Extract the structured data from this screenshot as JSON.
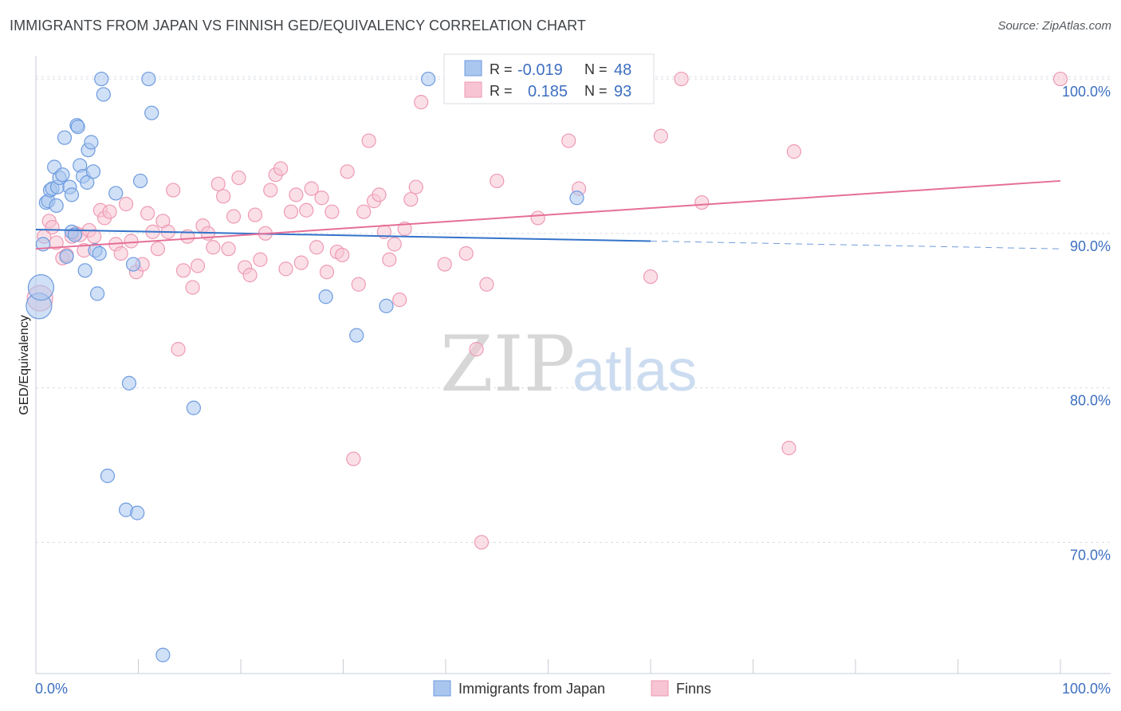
{
  "title": "IMMIGRANTS FROM JAPAN VS FINNISH GED/EQUIVALENCY CORRELATION CHART",
  "source": "Source: ZipAtlas.com",
  "watermark": {
    "zip": "ZIP",
    "atlas": "atlas"
  },
  "colors": {
    "japan_fill": "#a9c6ee",
    "japan_stroke": "#6d9be0",
    "japan_line": "#3373c9",
    "finns_fill": "#f7c4d3",
    "finns_stroke": "#ee9ab3",
    "finns_line": "#e56f97",
    "grid": "#d8dde3",
    "tick_text": "#3d6fc0"
  },
  "legend_top": {
    "rows": [
      {
        "r_label": "R =",
        "r_value": "-0.019",
        "n_label": "N =",
        "n_value": "48"
      },
      {
        "r_label": "R =",
        "r_value": "0.185",
        "n_label": "N =",
        "n_value": "93"
      }
    ]
  },
  "legend_bottom": [
    "Immigrants from Japan",
    "Finns"
  ],
  "chart_data": {
    "type": "scatter",
    "title": "IMMIGRANTS FROM JAPAN VS FINNISH GED/EQUIVALENCY CORRELATION CHART",
    "xlabel": "",
    "ylabel": "GED/Equivalency",
    "xlim": [
      0,
      100
    ],
    "ylim": [
      61.5,
      101.5
    ],
    "x_tick_labels": [
      "0.0%",
      "100.0%"
    ],
    "y_ticks": [
      70,
      80,
      90,
      100
    ],
    "y_tick_labels": [
      "70.0%",
      "80.0%",
      "90.0%",
      "100.0%"
    ],
    "grid": true,
    "legend_placement": "top-center and bottom-center",
    "series": [
      {
        "name": "Immigrants from Japan",
        "R": -0.019,
        "N": 48,
        "trend": {
          "x0": 0,
          "y0": 90.25,
          "x1": 60,
          "y1": 89.5,
          "dashed_to_x": 100,
          "dashed_to_y": 89.0
        },
        "points": [
          [
            0.3,
            85.3
          ],
          [
            0.5,
            86.5
          ],
          [
            0.7,
            89.3
          ],
          [
            1.0,
            92.0
          ],
          [
            1.2,
            92.1
          ],
          [
            1.4,
            92.8
          ],
          [
            1.6,
            92.9
          ],
          [
            1.8,
            94.3
          ],
          [
            2.0,
            91.8
          ],
          [
            2.1,
            93.0
          ],
          [
            2.3,
            93.6
          ],
          [
            2.6,
            93.8
          ],
          [
            2.8,
            96.2
          ],
          [
            3.0,
            88.5
          ],
          [
            3.3,
            93.0
          ],
          [
            3.5,
            92.5
          ],
          [
            3.5,
            90.1
          ],
          [
            3.8,
            89.9
          ],
          [
            4.0,
            97.0
          ],
          [
            4.1,
            96.9
          ],
          [
            4.3,
            94.4
          ],
          [
            4.6,
            93.7
          ],
          [
            4.8,
            87.6
          ],
          [
            5.0,
            93.3
          ],
          [
            5.1,
            95.4
          ],
          [
            5.4,
            95.9
          ],
          [
            5.6,
            94.0
          ],
          [
            5.8,
            88.9
          ],
          [
            6.0,
            86.1
          ],
          [
            6.2,
            88.7
          ],
          [
            6.4,
            100.0
          ],
          [
            6.6,
            99.0
          ],
          [
            7.0,
            74.3
          ],
          [
            7.8,
            92.6
          ],
          [
            8.8,
            72.1
          ],
          [
            9.1,
            80.3
          ],
          [
            9.5,
            88.0
          ],
          [
            9.9,
            71.9
          ],
          [
            10.2,
            93.4
          ],
          [
            11.0,
            100.0
          ],
          [
            11.3,
            97.8
          ],
          [
            12.4,
            62.7
          ],
          [
            15.4,
            78.7
          ],
          [
            28.3,
            85.9
          ],
          [
            31.3,
            83.4
          ],
          [
            34.2,
            85.3
          ],
          [
            38.3,
            100.0
          ],
          [
            52.8,
            92.3
          ]
        ]
      },
      {
        "name": "Finns",
        "R": 0.185,
        "N": 93,
        "trend": {
          "x0": 0,
          "y0": 89.0,
          "x1": 100,
          "y1": 93.4
        },
        "points": [
          [
            0.4,
            85.8
          ],
          [
            0.8,
            89.8
          ],
          [
            1.3,
            90.8
          ],
          [
            1.6,
            90.4
          ],
          [
            2.0,
            89.4
          ],
          [
            2.6,
            88.4
          ],
          [
            3.0,
            88.6
          ],
          [
            3.5,
            89.8
          ],
          [
            3.9,
            90.0
          ],
          [
            4.3,
            89.9
          ],
          [
            4.7,
            88.9
          ],
          [
            5.2,
            90.2
          ],
          [
            5.7,
            89.8
          ],
          [
            6.3,
            91.5
          ],
          [
            6.7,
            91.0
          ],
          [
            7.2,
            91.4
          ],
          [
            7.8,
            89.3
          ],
          [
            8.3,
            88.7
          ],
          [
            8.8,
            91.9
          ],
          [
            9.3,
            89.5
          ],
          [
            9.8,
            87.5
          ],
          [
            10.4,
            88.0
          ],
          [
            10.9,
            91.3
          ],
          [
            11.4,
            90.1
          ],
          [
            11.9,
            89.0
          ],
          [
            12.4,
            90.8
          ],
          [
            12.9,
            90.1
          ],
          [
            13.4,
            92.8
          ],
          [
            13.9,
            82.5
          ],
          [
            14.4,
            87.6
          ],
          [
            14.8,
            89.8
          ],
          [
            15.3,
            86.5
          ],
          [
            15.8,
            87.9
          ],
          [
            16.3,
            90.5
          ],
          [
            16.8,
            90.0
          ],
          [
            17.3,
            89.1
          ],
          [
            17.8,
            93.2
          ],
          [
            18.3,
            92.4
          ],
          [
            18.8,
            89.0
          ],
          [
            19.3,
            91.1
          ],
          [
            19.8,
            93.6
          ],
          [
            20.4,
            87.8
          ],
          [
            20.9,
            87.3
          ],
          [
            21.4,
            91.2
          ],
          [
            21.9,
            88.3
          ],
          [
            22.4,
            90.0
          ],
          [
            22.9,
            92.8
          ],
          [
            23.4,
            93.8
          ],
          [
            23.9,
            94.2
          ],
          [
            24.4,
            87.7
          ],
          [
            24.9,
            91.4
          ],
          [
            25.4,
            92.5
          ],
          [
            25.9,
            88.1
          ],
          [
            26.4,
            91.5
          ],
          [
            26.9,
            92.9
          ],
          [
            27.4,
            89.1
          ],
          [
            27.9,
            92.3
          ],
          [
            28.4,
            87.5
          ],
          [
            28.9,
            91.4
          ],
          [
            29.4,
            88.8
          ],
          [
            29.9,
            88.6
          ],
          [
            30.4,
            94.0
          ],
          [
            31.0,
            75.4
          ],
          [
            31.5,
            86.7
          ],
          [
            32.0,
            91.4
          ],
          [
            32.5,
            96.0
          ],
          [
            33.0,
            92.1
          ],
          [
            33.5,
            92.5
          ],
          [
            34.0,
            90.1
          ],
          [
            34.5,
            88.3
          ],
          [
            35.0,
            89.3
          ],
          [
            35.5,
            85.7
          ],
          [
            36.0,
            90.3
          ],
          [
            36.6,
            92.2
          ],
          [
            37.1,
            93.0
          ],
          [
            37.6,
            98.5
          ],
          [
            39.9,
            88.0
          ],
          [
            42.0,
            88.7
          ],
          [
            43.0,
            82.5
          ],
          [
            43.5,
            70.0
          ],
          [
            44.0,
            86.7
          ],
          [
            45.0,
            93.4
          ],
          [
            49.0,
            91.0
          ],
          [
            52.0,
            96.0
          ],
          [
            55.0,
            100.0
          ],
          [
            60.0,
            87.2
          ],
          [
            61.0,
            96.3
          ],
          [
            63.0,
            100.0
          ],
          [
            65.0,
            92.0
          ],
          [
            73.5,
            76.1
          ],
          [
            74.0,
            95.3
          ],
          [
            100.0,
            100.0
          ],
          [
            53.0,
            92.9
          ]
        ]
      }
    ]
  }
}
